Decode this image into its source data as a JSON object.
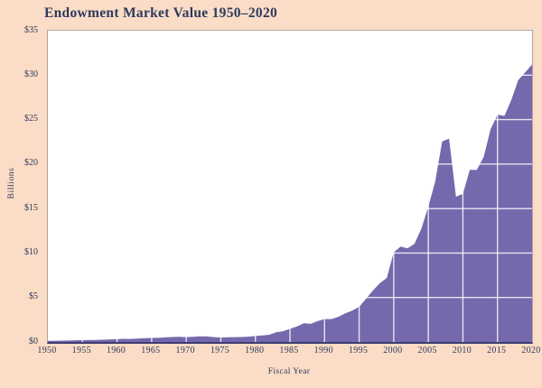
{
  "theme": {
    "page-bg": "#fbdcc6",
    "text": "#2b3a5c",
    "plot-bg": "#ffffff",
    "plot-border": "#b2a79c",
    "axis-line": "#3d3d72",
    "area": "#7568ac",
    "grid": "rgba(255,255,255,0.82)"
  },
  "chart_data": {
    "type": "area",
    "title": "Endowment Market Value 1950–2020",
    "xlabel": "Fiscal Year",
    "ylabel": "Billions",
    "xlim": [
      1950,
      2020
    ],
    "ylim": [
      0,
      35
    ],
    "legend": "none",
    "grid": {
      "style": "pale gridlines drawn over the area fill, invisible on white background",
      "x_values": [
        1955,
        1960,
        1965,
        1970,
        1975,
        1980,
        1985,
        1990,
        1995,
        2000,
        2005,
        2010,
        2015
      ],
      "y_values": [
        5,
        10,
        15,
        20,
        25,
        30
      ]
    },
    "x_ticks": [
      {
        "label": "1950",
        "value": 1950
      },
      {
        "label": "1955",
        "value": 1955
      },
      {
        "label": "1960",
        "value": 1960
      },
      {
        "label": "1965",
        "value": 1965
      },
      {
        "label": "1970",
        "value": 1970
      },
      {
        "label": "1975",
        "value": 1975
      },
      {
        "label": "1980",
        "value": 1980
      },
      {
        "label": "1985",
        "value": 1985
      },
      {
        "label": "1990",
        "value": 1990
      },
      {
        "label": "1995",
        "value": 1995
      },
      {
        "label": "2000",
        "value": 2000
      },
      {
        "label": "2005",
        "value": 2005
      },
      {
        "label": "2010",
        "value": 2010
      },
      {
        "label": "2015",
        "value": 2015
      },
      {
        "label": "2020",
        "value": 2020
      }
    ],
    "y_ticks": [
      {
        "label": "$35",
        "value": 35
      },
      {
        "label": "$30",
        "value": 30
      },
      {
        "label": "$25",
        "value": 25
      },
      {
        "label": "$20",
        "value": 20
      },
      {
        "label": "$15",
        "value": 15
      },
      {
        "label": "$10",
        "value": 10
      },
      {
        "label": "$5",
        "value": 5
      },
      {
        "label": "$0",
        "value": 0
      }
    ],
    "series": [
      {
        "name": "Endowment market value ($ billions)",
        "x": [
          1950,
          1951,
          1952,
          1953,
          1954,
          1955,
          1956,
          1957,
          1958,
          1959,
          1960,
          1961,
          1962,
          1963,
          1964,
          1965,
          1966,
          1967,
          1968,
          1969,
          1970,
          1971,
          1972,
          1973,
          1974,
          1975,
          1976,
          1977,
          1978,
          1979,
          1980,
          1981,
          1982,
          1983,
          1984,
          1985,
          1986,
          1987,
          1988,
          1989,
          1990,
          1991,
          1992,
          1993,
          1994,
          1995,
          1996,
          1997,
          1998,
          1999,
          2000,
          2001,
          2002,
          2003,
          2004,
          2005,
          2006,
          2007,
          2008,
          2009,
          2010,
          2011,
          2012,
          2013,
          2014,
          2015,
          2016,
          2017,
          2018,
          2019,
          2020
        ],
        "values": [
          0.13,
          0.14,
          0.15,
          0.17,
          0.19,
          0.21,
          0.22,
          0.23,
          0.26,
          0.29,
          0.32,
          0.35,
          0.34,
          0.38,
          0.43,
          0.45,
          0.47,
          0.52,
          0.56,
          0.58,
          0.55,
          0.58,
          0.64,
          0.62,
          0.55,
          0.51,
          0.53,
          0.54,
          0.56,
          0.6,
          0.67,
          0.74,
          0.81,
          1.09,
          1.2,
          1.48,
          1.74,
          2.1,
          2.04,
          2.34,
          2.57,
          2.57,
          2.83,
          3.22,
          3.53,
          3.96,
          4.86,
          5.79,
          6.62,
          7.2,
          10.08,
          10.73,
          10.52,
          11.03,
          12.75,
          15.22,
          18.03,
          22.53,
          22.87,
          16.33,
          16.65,
          19.37,
          19.34,
          20.78,
          23.9,
          25.57,
          25.41,
          27.22,
          29.45,
          30.31,
          31.2
        ]
      }
    ]
  }
}
